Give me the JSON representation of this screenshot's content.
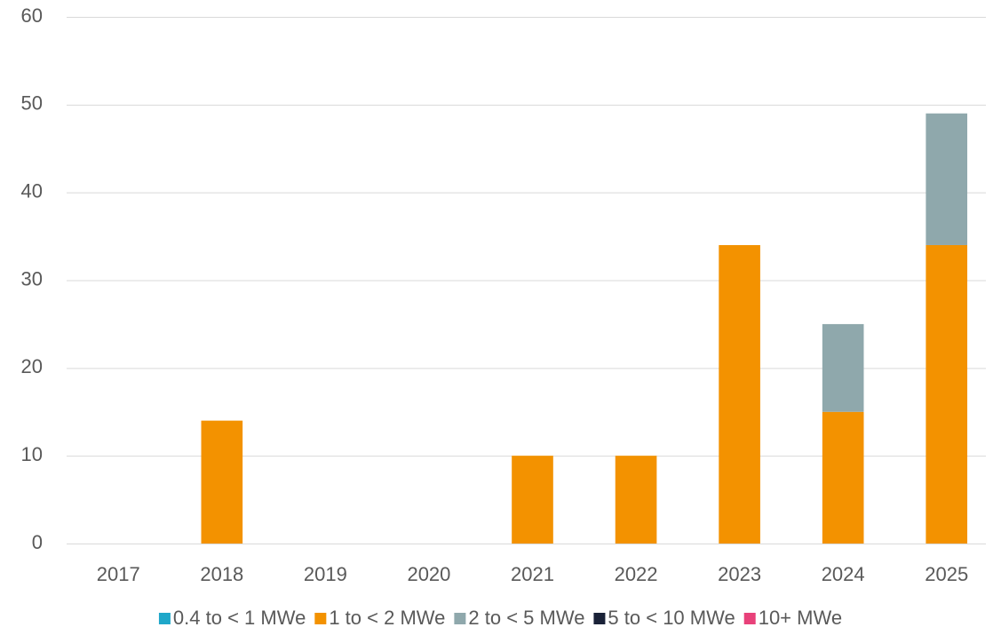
{
  "chart_data": {
    "type": "stacked_bar",
    "categories": [
      "2017",
      "2018",
      "2019",
      "2020",
      "2021",
      "2022",
      "2023",
      "2024",
      "2025"
    ],
    "series": [
      {
        "name": "0.4 to < 1 MWe",
        "color": "#1fa7c9",
        "values": [
          0,
          0,
          0,
          0,
          0,
          0,
          0,
          0,
          0
        ]
      },
      {
        "name": "1 to < 2 MWe",
        "color": "#f39200",
        "values": [
          0,
          14,
          0,
          0,
          10,
          10,
          34,
          15,
          34
        ]
      },
      {
        "name": "2 to < 5 MWe",
        "color": "#8fa8ac",
        "values": [
          0,
          0,
          0,
          0,
          0,
          0,
          0,
          10,
          15
        ]
      },
      {
        "name": "5 to < 10 MWe",
        "color": "#1a2238",
        "values": [
          0,
          0,
          0,
          0,
          0,
          0,
          0,
          0,
          0
        ]
      },
      {
        "name": "10+ MWe",
        "color": "#e8417a",
        "values": [
          0,
          0,
          0,
          0,
          0,
          0,
          0,
          0,
          0
        ]
      }
    ],
    "ylim": [
      0,
      60
    ],
    "yticks": [
      0,
      10,
      20,
      30,
      40,
      50,
      60
    ],
    "grid": true,
    "legend": "bottom"
  }
}
